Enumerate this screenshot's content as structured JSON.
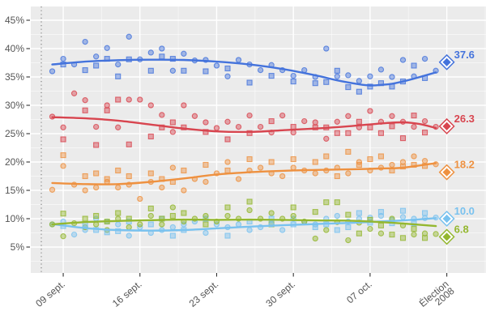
{
  "chart_data": {
    "type": "scatter",
    "title": "",
    "legend": "none",
    "grid": "on",
    "panel_color": "#ebebeb",
    "grid_major_color": "#ffffff",
    "axis_text_color": "#555555",
    "x_axis": {
      "unit": "days_from_campaign_start",
      "ticks": [
        {
          "day": 2,
          "label": "09 sept."
        },
        {
          "day": 9,
          "label": "16 sept."
        },
        {
          "day": 16,
          "label": "23 sept."
        },
        {
          "day": 23,
          "label": "30 sept."
        },
        {
          "day": 30,
          "label": "07 oct."
        },
        {
          "day": 37,
          "label": "Élection\n2008"
        }
      ],
      "minor_tick_days": [
        5.5,
        12.5,
        19.5,
        26.5,
        33.5,
        40.5
      ],
      "reference_line_day": 0,
      "range_days": [
        -1,
        40.5
      ]
    },
    "y_axis": {
      "ticks": [
        {
          "value": 5,
          "label": "5%"
        },
        {
          "value": 10,
          "label": "10%"
        },
        {
          "value": 15,
          "label": "15%"
        },
        {
          "value": 20,
          "label": "20%"
        },
        {
          "value": 25,
          "label": "25%"
        },
        {
          "value": 30,
          "label": "30%"
        },
        {
          "value": 35,
          "label": "35%"
        },
        {
          "value": 40,
          "label": "40%"
        },
        {
          "value": 45,
          "label": "45%"
        }
      ],
      "minor_tick_values": [
        2.5,
        7.5,
        12.5,
        17.5,
        22.5,
        27.5,
        32.5,
        37.5,
        42.5
      ],
      "range": [
        0.5,
        47.4
      ]
    },
    "election_day": 37,
    "series": [
      {
        "id": "blue",
        "color": "#4473dc",
        "final_value": 37.6,
        "final_label": "37.6",
        "trend": [
          [
            1,
            37.2
          ],
          [
            4,
            37.7
          ],
          [
            7,
            37.95
          ],
          [
            10,
            38.05
          ],
          [
            13,
            38.0
          ],
          [
            16,
            37.7
          ],
          [
            19,
            37.2
          ],
          [
            22,
            36.4
          ],
          [
            25,
            35.3
          ],
          [
            27,
            34.4
          ],
          [
            29,
            33.7
          ],
          [
            30,
            33.5
          ],
          [
            31,
            33.6
          ],
          [
            32,
            33.8
          ],
          [
            33,
            34.2
          ],
          [
            34,
            34.7
          ],
          [
            36,
            35.8
          ]
        ]
      },
      {
        "id": "red",
        "color": "#d8454f",
        "final_value": 26.3,
        "final_label": "26.3",
        "trend": [
          [
            1,
            27.9
          ],
          [
            4,
            27.7
          ],
          [
            7,
            27.3
          ],
          [
            10,
            26.6
          ],
          [
            13,
            25.9
          ],
          [
            16,
            25.4
          ],
          [
            19,
            25.3
          ],
          [
            22,
            25.6
          ],
          [
            25,
            25.9
          ],
          [
            28,
            26.3
          ],
          [
            31,
            26.8
          ],
          [
            33,
            27.0
          ],
          [
            34.5,
            26.7
          ],
          [
            36,
            26.0
          ]
        ]
      },
      {
        "id": "orange",
        "color": "#ee9140",
        "final_value": 18.2,
        "final_label": "18.2",
        "trend": [
          [
            1,
            16.3
          ],
          [
            4,
            16.1
          ],
          [
            7,
            16.1
          ],
          [
            10,
            16.5
          ],
          [
            13,
            17.1
          ],
          [
            16,
            17.8
          ],
          [
            19,
            18.2
          ],
          [
            22,
            18.45
          ],
          [
            25,
            18.6
          ],
          [
            28,
            18.7
          ],
          [
            31,
            18.85
          ],
          [
            33,
            19.0
          ],
          [
            36,
            19.8
          ]
        ]
      },
      {
        "id": "lightblue",
        "color": "#79c2ef",
        "final_value": 10.0,
        "final_label": "10.0",
        "trend": [
          [
            1,
            9.05
          ],
          [
            4,
            8.35
          ],
          [
            7,
            8.0
          ],
          [
            10,
            7.9
          ],
          [
            13,
            8.0
          ],
          [
            16,
            8.3
          ],
          [
            19,
            8.6
          ],
          [
            22,
            8.85
          ],
          [
            25,
            9.05
          ],
          [
            28,
            9.25
          ],
          [
            31,
            9.5
          ],
          [
            33,
            9.7
          ],
          [
            36,
            10.1
          ]
        ]
      },
      {
        "id": "green",
        "color": "#94b72f",
        "final_value": 6.8,
        "final_label": "6.8",
        "trend": [
          [
            1,
            9.0
          ],
          [
            4,
            9.4
          ],
          [
            7,
            9.6
          ],
          [
            10,
            9.75
          ],
          [
            13,
            9.85
          ],
          [
            16,
            9.8
          ],
          [
            19,
            9.85
          ],
          [
            22,
            9.8
          ],
          [
            25,
            9.7
          ],
          [
            28,
            9.65
          ],
          [
            31,
            9.4
          ],
          [
            33,
            9.15
          ],
          [
            36,
            8.7
          ]
        ]
      }
    ],
    "polls_note": "each poll: [day, marker_shape(c=circle,s=square), blue, red, orange, lightblue, green] in percent",
    "polls": [
      [
        1,
        "c",
        36.0,
        28.0,
        15.1,
        9.0,
        9.0
      ],
      [
        2,
        "c",
        38.2,
        26.1,
        19.3,
        9.5,
        6.9
      ],
      [
        2,
        "s",
        37.2,
        24.0,
        21.2,
        8.7,
        10.9
      ],
      [
        3,
        "c",
        37.2,
        32.1,
        16.0,
        7.2,
        9.2
      ],
      [
        4,
        "c",
        41.2,
        30.9,
        15.0,
        8.0,
        8.5
      ],
      [
        4,
        "s",
        36.2,
        29.1,
        17.5,
        9.0,
        10.0
      ],
      [
        5,
        "c",
        38.6,
        26.2,
        15.5,
        10.0,
        9.0
      ],
      [
        5,
        "s",
        37.0,
        23.0,
        18.0,
        8.0,
        10.5
      ],
      [
        6,
        "c",
        40.1,
        30.0,
        16.5,
        9.5,
        8.0
      ],
      [
        6,
        "s",
        38.2,
        29.1,
        17.0,
        7.6,
        9.5
      ],
      [
        7,
        "c",
        37.2,
        26.1,
        15.5,
        9.0,
        10.0
      ],
      [
        7,
        "s",
        35.1,
        31.0,
        18.5,
        7.8,
        11.0
      ],
      [
        8,
        "c",
        42.1,
        31.0,
        16.0,
        7.0,
        8.5
      ],
      [
        8,
        "s",
        38.1,
        23.1,
        17.5,
        9.5,
        10.0
      ],
      [
        9,
        "c",
        38.1,
        31.0,
        13.5,
        8.5,
        9.0
      ],
      [
        10,
        "c",
        39.3,
        30.0,
        16.5,
        7.5,
        10.5
      ],
      [
        10,
        "s",
        36.1,
        24.5,
        18.0,
        9.0,
        11.8
      ],
      [
        11,
        "c",
        40.0,
        28.3,
        15.5,
        8.0,
        9.0
      ],
      [
        11,
        "s",
        38.6,
        26.1,
        17.0,
        10.0,
        10.0
      ],
      [
        12,
        "c",
        36.1,
        25.3,
        19.0,
        8.5,
        12.0
      ],
      [
        12,
        "s",
        38.2,
        27.0,
        16.5,
        7.0,
        10.5
      ],
      [
        13,
        "c",
        39.1,
        30.0,
        15.0,
        9.0,
        9.5
      ],
      [
        13,
        "s",
        36.1,
        26.1,
        18.5,
        8.0,
        11.0
      ],
      [
        14,
        "c",
        37.9,
        28.1,
        17.0,
        9.5,
        10.0
      ],
      [
        15,
        "s",
        36.0,
        25.3,
        19.5,
        10.0,
        9.0
      ],
      [
        15,
        "c",
        38.0,
        27.0,
        16.5,
        7.5,
        10.5
      ],
      [
        16,
        "c",
        37.0,
        26.0,
        18.0,
        9.0,
        9.5
      ],
      [
        17,
        "c",
        35.1,
        27.1,
        20.0,
        8.5,
        10.5
      ],
      [
        17,
        "s",
        36.5,
        24.0,
        18.5,
        7.0,
        12.0
      ],
      [
        18,
        "c",
        38.0,
        26.2,
        17.0,
        9.0,
        10.0
      ],
      [
        19,
        "c",
        37.2,
        28.2,
        18.5,
        8.0,
        11.5
      ],
      [
        19,
        "s",
        34.0,
        25.1,
        20.5,
        9.5,
        13.0
      ],
      [
        20,
        "c",
        36.2,
        26.2,
        19.0,
        8.5,
        10.0
      ],
      [
        21,
        "s",
        35.2,
        27.2,
        20.0,
        10.0,
        9.0
      ],
      [
        21,
        "c",
        37.1,
        25.2,
        18.0,
        9.0,
        11.0
      ],
      [
        22,
        "c",
        36.2,
        28.2,
        17.5,
        8.0,
        10.0
      ],
      [
        23,
        "s",
        34.2,
        26.2,
        20.5,
        9.0,
        12.0
      ],
      [
        23,
        "c",
        35.2,
        25.2,
        19.0,
        10.0,
        10.5
      ],
      [
        24,
        "c",
        36.2,
        27.2,
        18.5,
        9.5,
        9.5
      ],
      [
        25,
        "s",
        33.9,
        26.1,
        20.0,
        8.5,
        11.2
      ],
      [
        25,
        "c",
        35.0,
        27.0,
        18.0,
        9.0,
        6.5
      ],
      [
        26,
        "c",
        40.0,
        24.1,
        18.5,
        10.0,
        8.0
      ],
      [
        26,
        "s",
        34.1,
        26.1,
        21.0,
        9.0,
        12.9
      ],
      [
        27,
        "c",
        35.1,
        27.1,
        19.0,
        10.5,
        9.4
      ],
      [
        27,
        "s",
        36.1,
        25.1,
        17.5,
        8.0,
        12.9
      ],
      [
        28,
        "s",
        33.2,
        25.1,
        21.8,
        8.5,
        10.7
      ],
      [
        28,
        "c",
        35.3,
        28.1,
        18.0,
        9.5,
        6.2
      ],
      [
        29,
        "c",
        34.3,
        26.1,
        20.0,
        10.0,
        9.3
      ],
      [
        29,
        "s",
        32.4,
        27.1,
        19.5,
        11.0,
        7.4
      ],
      [
        30,
        "c",
        35.1,
        29.0,
        18.5,
        10.2,
        8.2
      ],
      [
        30,
        "s",
        33.3,
        26.1,
        20.5,
        9.3,
        9.8
      ],
      [
        31,
        "c",
        36.3,
        27.1,
        19.0,
        10.5,
        7.4
      ],
      [
        31,
        "s",
        33.9,
        25.1,
        21.0,
        11.2,
        8.8
      ],
      [
        32,
        "c",
        35.0,
        28.1,
        19.5,
        9.8,
        10.0
      ],
      [
        32,
        "s",
        33.3,
        26.3,
        18.5,
        9.2,
        7.2
      ],
      [
        33,
        "c",
        38.0,
        27.1,
        20.0,
        10.3,
        8.8
      ],
      [
        33,
        "s",
        34.2,
        24.2,
        19.2,
        11.4,
        6.6
      ],
      [
        34,
        "c",
        35.1,
        26.2,
        21.0,
        10.0,
        7.2
      ],
      [
        34,
        "s",
        37.0,
        28.2,
        19.5,
        9.2,
        8.2
      ],
      [
        35,
        "c",
        38.2,
        27.2,
        20.2,
        10.1,
        7.4
      ],
      [
        35,
        "s",
        34.8,
        25.2,
        19.3,
        11.0,
        6.6
      ],
      [
        36,
        "c",
        36.1,
        26.2,
        19.6,
        10.2,
        7.3
      ]
    ]
  }
}
